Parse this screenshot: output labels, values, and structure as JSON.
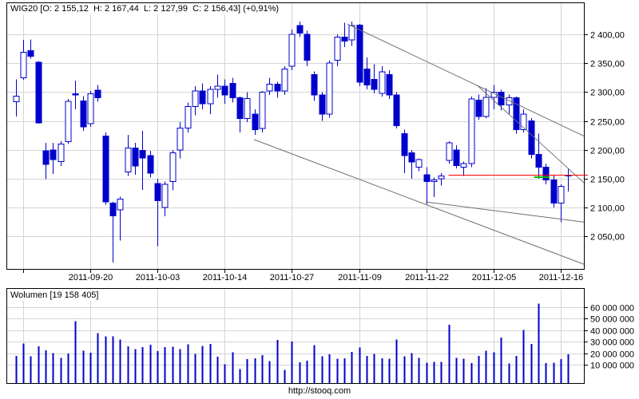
{
  "header": {
    "title": "WIG20 [O: 2 155,12  H: 2 167,44  L: 2 127,99  C: 2 156,43] (+0,91%)"
  },
  "volume_header": {
    "title": "Wolumen [19 158 405]"
  },
  "footer": {
    "url": "http://stooq.com"
  },
  "chart_data": {
    "type": "candlestick",
    "instrument": "WIG20",
    "last_quote": {
      "open": "2 155,12",
      "high": "2 167,44",
      "low": "2 127,99",
      "close": "2 156,43",
      "change_pct": "+0,91%"
    },
    "legend_position": "none",
    "grid": true,
    "x_axis": {
      "labels": [
        "2011-09-20",
        "2011-10-03",
        "2011-10-14",
        "2011-10-27",
        "2011-11-09",
        "2011-11-22",
        "2011-12-05",
        "2011-12-16"
      ],
      "label_bar_indices": [
        10,
        19,
        28,
        37,
        46,
        55,
        64,
        73
      ],
      "gridline_bar_indices": [
        1,
        10,
        19,
        28,
        37,
        46,
        55,
        64,
        73
      ]
    },
    "y_axis_price": {
      "tick_labels": [
        "2 400,00",
        "2 350,00",
        "2 300,00",
        "2 250,00",
        "2 200,00",
        "2 150,00",
        "2 100,00",
        "2 050,00"
      ],
      "tick_values": [
        2400,
        2350,
        2300,
        2250,
        2200,
        2150,
        2100,
        2050
      ],
      "range": [
        1994,
        2455
      ]
    },
    "y_axis_volume": {
      "tick_labels": [
        "60 000 000",
        "50 000 000",
        "40 000 000",
        "30 000 000",
        "20 000 000",
        "10 000 000"
      ],
      "tick_values": [
        60000000,
        50000000,
        40000000,
        30000000,
        20000000,
        10000000
      ],
      "range": [
        0,
        66000000
      ]
    },
    "candles_ohlc": [
      [
        2283,
        2322,
        2258,
        2293
      ],
      [
        2325,
        2390,
        2321,
        2369
      ],
      [
        2372,
        2391,
        2358,
        2362
      ],
      [
        2352,
        2354,
        2245,
        2247
      ],
      [
        2198,
        2212,
        2149,
        2175
      ],
      [
        2200,
        2212,
        2158,
        2183
      ],
      [
        2180,
        2215,
        2172,
        2210
      ],
      [
        2214,
        2288,
        2210,
        2284
      ],
      [
        2297,
        2320,
        2270,
        2295
      ],
      [
        2285,
        2293,
        2233,
        2240
      ],
      [
        2245,
        2302,
        2240,
        2297
      ],
      [
        2303,
        2312,
        2283,
        2290
      ],
      [
        2224,
        2230,
        2105,
        2110
      ],
      [
        2108,
        2110,
        2005,
        2086
      ],
      [
        2096,
        2119,
        2043,
        2115
      ],
      [
        2162,
        2226,
        2155,
        2203
      ],
      [
        2203,
        2212,
        2157,
        2172
      ],
      [
        2199,
        2233,
        2131,
        2186
      ],
      [
        2190,
        2198,
        2152,
        2160
      ],
      [
        2142,
        2150,
        2033,
        2112
      ],
      [
        2100,
        2145,
        2085,
        2140
      ],
      [
        2145,
        2200,
        2130,
        2195
      ],
      [
        2200,
        2248,
        2185,
        2238
      ],
      [
        2238,
        2282,
        2230,
        2275
      ],
      [
        2275,
        2310,
        2260,
        2302
      ],
      [
        2302,
        2315,
        2270,
        2280
      ],
      [
        2280,
        2310,
        2262,
        2305
      ],
      [
        2305,
        2330,
        2290,
        2310
      ],
      [
        2310,
        2322,
        2280,
        2295
      ],
      [
        2315,
        2325,
        2282,
        2290
      ],
      [
        2290,
        2292,
        2230,
        2254
      ],
      [
        2254,
        2300,
        2248,
        2289
      ],
      [
        2262,
        2270,
        2226,
        2235
      ],
      [
        2237,
        2302,
        2230,
        2300
      ],
      [
        2302,
        2325,
        2295,
        2314
      ],
      [
        2314,
        2318,
        2290,
        2302
      ],
      [
        2302,
        2345,
        2295,
        2340
      ],
      [
        2345,
        2408,
        2338,
        2400
      ],
      [
        2415,
        2422,
        2395,
        2402
      ],
      [
        2400,
        2406,
        2345,
        2355
      ],
      [
        2330,
        2336,
        2285,
        2295
      ],
      [
        2295,
        2300,
        2250,
        2262
      ],
      [
        2262,
        2355,
        2256,
        2350
      ],
      [
        2355,
        2400,
        2345,
        2395
      ],
      [
        2395,
        2420,
        2378,
        2388
      ],
      [
        2390,
        2422,
        2380,
        2415
      ],
      [
        2416,
        2418,
        2310,
        2317
      ],
      [
        2340,
        2360,
        2305,
        2312
      ],
      [
        2322,
        2348,
        2298,
        2305
      ],
      [
        2298,
        2345,
        2292,
        2335
      ],
      [
        2330,
        2338,
        2288,
        2295
      ],
      [
        2295,
        2300,
        2237,
        2242
      ],
      [
        2228,
        2235,
        2160,
        2190
      ],
      [
        2195,
        2200,
        2150,
        2179
      ],
      [
        2170,
        2185,
        2163,
        2183
      ],
      [
        2157,
        2170,
        2106,
        2145
      ],
      [
        2145,
        2152,
        2118,
        2148
      ],
      [
        2150,
        2160,
        2138,
        2155
      ],
      [
        2182,
        2215,
        2176,
        2212
      ],
      [
        2200,
        2208,
        2168,
        2173
      ],
      [
        2170,
        2180,
        2155,
        2176
      ],
      [
        2176,
        2292,
        2170,
        2288
      ],
      [
        2286,
        2296,
        2252,
        2258
      ],
      [
        2258,
        2307,
        2255,
        2291
      ],
      [
        2291,
        2312,
        2270,
        2300
      ],
      [
        2300,
        2304,
        2268,
        2278
      ],
      [
        2278,
        2296,
        2262,
        2290
      ],
      [
        2290,
        2292,
        2228,
        2235
      ],
      [
        2235,
        2270,
        2230,
        2262
      ],
      [
        2250,
        2255,
        2185,
        2192
      ],
      [
        2192,
        2228,
        2150,
        2170
      ],
      [
        2170,
        2176,
        2140,
        2148
      ],
      [
        2148,
        2156,
        2100,
        2108
      ],
      [
        2108,
        2140,
        2075,
        2137
      ],
      [
        2155.12,
        2167.44,
        2127.99,
        2156.43
      ]
    ],
    "volumes": [
      17600000,
      28300000,
      17200000,
      26000000,
      22500000,
      20000000,
      16000000,
      19700000,
      48000000,
      22300000,
      20400000,
      37300000,
      34500000,
      34800000,
      32000000,
      25800000,
      23400000,
      25300000,
      27200000,
      21800000,
      25300000,
      25500000,
      23700000,
      27600000,
      19500000,
      26200000,
      28000000,
      17000000,
      10200000,
      20600000,
      6300000,
      14900000,
      15500000,
      18500000,
      13000000,
      31700000,
      5600000,
      30000000,
      12000000,
      13300000,
      27100000,
      17200000,
      19000000,
      15100000,
      15500000,
      21100000,
      25000000,
      17800000,
      19500000,
      15500000,
      15300000,
      32000000,
      17400000,
      20200000,
      16000000,
      11600000,
      12600000,
      12600000,
      44700000,
      15800000,
      15100000,
      11400000,
      17600000,
      22300000,
      20900000,
      33600000,
      10900000,
      17600000,
      40300000,
      28000000,
      63000000,
      11400000,
      11900000,
      14700000,
      19158405
    ],
    "overlays": {
      "trendlines": [
        {
          "x1_bar": 44.4,
          "price1": 2418,
          "x2_bar": 76.1,
          "price2": 2224
        },
        {
          "x1_bar": 61.8,
          "price1": 2312,
          "x2_bar": 76.1,
          "price2": 2143
        },
        {
          "x1_bar": 31.9,
          "price1": 2218,
          "x2_bar": 76.1,
          "price2": 2002
        },
        {
          "x1_bar": 54.9,
          "price1": 2110,
          "x2_bar": 76.1,
          "price2": 2075
        }
      ],
      "last_close_line": {
        "price": 2156.43,
        "x1_bar": 58.0,
        "x2_bar": 76.1
      },
      "open_marker": {
        "price": 2155,
        "x1_bar": 69.4,
        "x2_bar": 71.5
      }
    },
    "colors": {
      "candle": "#0000CC",
      "volume_bar": "#0000CC",
      "grid": "#D4D4D4",
      "trendline": "#707070",
      "last_close_line": "#FF0000",
      "open_marker": "#00B800",
      "border": "#000000",
      "text": "#000000",
      "up_body": "hollow",
      "down_body": "filled"
    }
  }
}
